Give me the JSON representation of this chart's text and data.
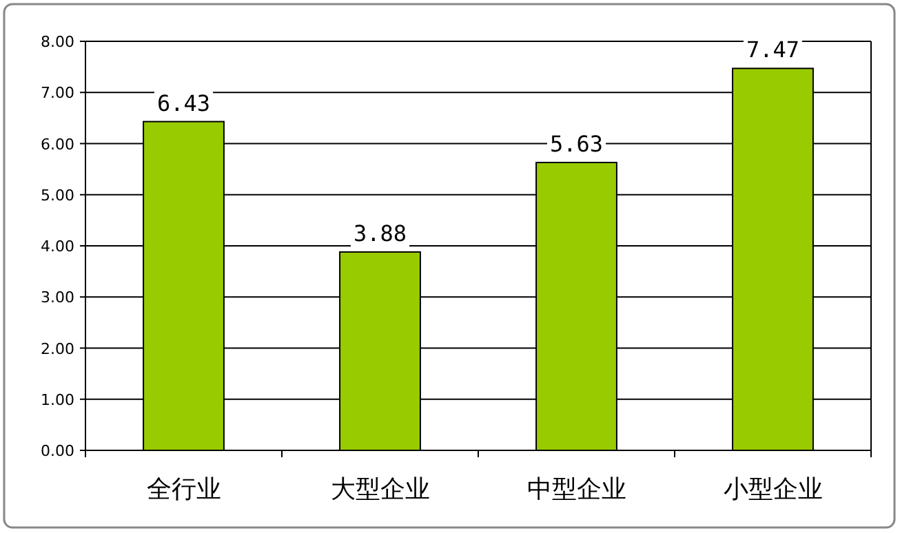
{
  "chart_data": {
    "type": "bar",
    "categories": [
      "全行业",
      "大型企业",
      "中型企业",
      "小型企业"
    ],
    "values": [
      6.43,
      3.88,
      5.63,
      7.47
    ],
    "color": "#99cc00",
    "ylim": [
      0,
      8
    ],
    "yticks": [
      {
        "value": 0,
        "label": "0.00"
      },
      {
        "value": 1,
        "label": "1.00"
      },
      {
        "value": 2,
        "label": "2.00"
      },
      {
        "value": 3,
        "label": "3.00"
      },
      {
        "value": 4,
        "label": "4.00"
      },
      {
        "value": 5,
        "label": "5.00"
      },
      {
        "value": 6,
        "label": "6.00"
      },
      {
        "value": 7,
        "label": "7.00"
      },
      {
        "value": 8,
        "label": "8.00"
      }
    ],
    "grid": "y",
    "data_labels": true
  }
}
